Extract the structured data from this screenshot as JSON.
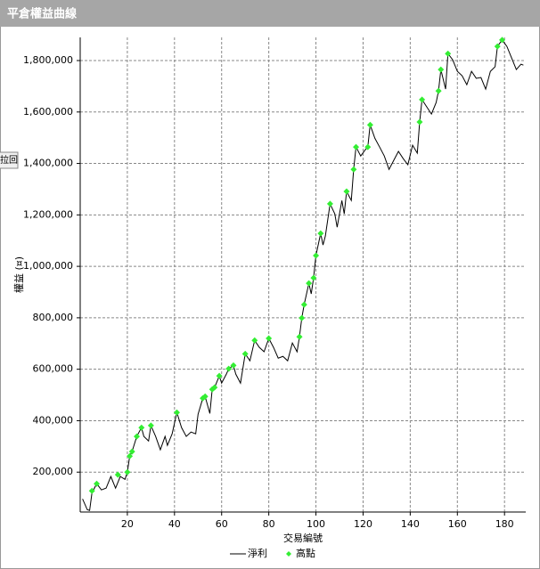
{
  "header": {
    "title": "平倉權益曲線",
    "button": "拉回"
  },
  "chart_data": {
    "type": "line",
    "xlabel": "交易編號",
    "ylabel": "權益 (¤)",
    "xlim": [
      0,
      189
    ],
    "ylim": [
      45000,
      1890000
    ],
    "xticks": [
      20,
      40,
      60,
      80,
      100,
      120,
      140,
      160,
      180
    ],
    "yticks": [
      {
        "value": 200000,
        "label": "200,000"
      },
      {
        "value": 400000,
        "label": "400,000"
      },
      {
        "value": 600000,
        "label": "600,000"
      },
      {
        "value": 800000,
        "label": "800,000"
      },
      {
        "value": 1000000,
        "label": "1,000,000"
      },
      {
        "value": 1200000,
        "label": "1,200,000"
      },
      {
        "value": 1400000,
        "label": "1,400,000"
      },
      {
        "value": 1600000,
        "label": "1,600,000"
      },
      {
        "value": 1800000,
        "label": "1,800,000"
      }
    ],
    "grid": true,
    "series": [
      {
        "name": "淨利",
        "color": "#000000",
        "kind": "line",
        "x": [
          1,
          3,
          4,
          5,
          7,
          9,
          11,
          13,
          15,
          17,
          19,
          20,
          21,
          22,
          24,
          26,
          27,
          29,
          30,
          32,
          34,
          36,
          37,
          39,
          41,
          43,
          45,
          47,
          49,
          50,
          52,
          53,
          55,
          56,
          57,
          59,
          60,
          62,
          63,
          65,
          66,
          68,
          70,
          72,
          74,
          76,
          78,
          80,
          82,
          84,
          86,
          88,
          90,
          92,
          93,
          94,
          95,
          97,
          98,
          99,
          100,
          102,
          103,
          104,
          106,
          108,
          109,
          111,
          112,
          113,
          115,
          116,
          117,
          119,
          121,
          122,
          123,
          125,
          127,
          129,
          131,
          133,
          135,
          137,
          139,
          141,
          143,
          144,
          145,
          147,
          149,
          151,
          152,
          153,
          155,
          156,
          158,
          160,
          162,
          164,
          166,
          168,
          170,
          172,
          174,
          176,
          177,
          179,
          181,
          183,
          185,
          187,
          188
        ],
        "values": [
          96000,
          54000,
          51000,
          120000,
          155000,
          131000,
          138000,
          183000,
          138000,
          183000,
          172000,
          200000,
          262000,
          280000,
          339000,
          373000,
          339000,
          321000,
          381000,
          339000,
          287000,
          339000,
          304000,
          349000,
          432000,
          373000,
          339000,
          356000,
          349000,
          425000,
          487000,
          494000,
          428000,
          522000,
          529000,
          574000,
          546000,
          581000,
          602000,
          615000,
          581000,
          546000,
          660000,
          633000,
          712000,
          685000,
          668000,
          720000,
          685000,
          643000,
          650000,
          633000,
          702000,
          668000,
          726000,
          799000,
          851000,
          934000,
          893000,
          955000,
          1042000,
          1128000,
          1083000,
          1118000,
          1243000,
          1204000,
          1152000,
          1256000,
          1204000,
          1291000,
          1256000,
          1377000,
          1464000,
          1429000,
          1454000,
          1464000,
          1550000,
          1498000,
          1464000,
          1429000,
          1377000,
          1412000,
          1447000,
          1419000,
          1395000,
          1471000,
          1440000,
          1561000,
          1648000,
          1620000,
          1592000,
          1637000,
          1682000,
          1765000,
          1689000,
          1827000,
          1803000,
          1758000,
          1741000,
          1706000,
          1758000,
          1731000,
          1734000,
          1689000,
          1758000,
          1776000,
          1855000,
          1880000,
          1855000,
          1810000,
          1765000,
          1786000,
          1782000
        ]
      },
      {
        "name": "高點",
        "color": "#33ee33",
        "kind": "scatter",
        "x": [
          5,
          7,
          16,
          20,
          21,
          22,
          24,
          26,
          30,
          41,
          52,
          53,
          56,
          57,
          59,
          63,
          65,
          70,
          74,
          80,
          93,
          94,
          95,
          97,
          99,
          100,
          102,
          106,
          113,
          116,
          117,
          122,
          123,
          144,
          145,
          152,
          153,
          156,
          177,
          179
        ],
        "values": [
          127000,
          155000,
          190000,
          200000,
          262000,
          280000,
          339000,
          373000,
          381000,
          432000,
          487000,
          494000,
          522000,
          529000,
          574000,
          602000,
          615000,
          660000,
          712000,
          720000,
          726000,
          799000,
          851000,
          934000,
          955000,
          1042000,
          1128000,
          1243000,
          1291000,
          1377000,
          1464000,
          1464000,
          1550000,
          1561000,
          1648000,
          1682000,
          1765000,
          1827000,
          1855000,
          1880000
        ]
      }
    ]
  }
}
